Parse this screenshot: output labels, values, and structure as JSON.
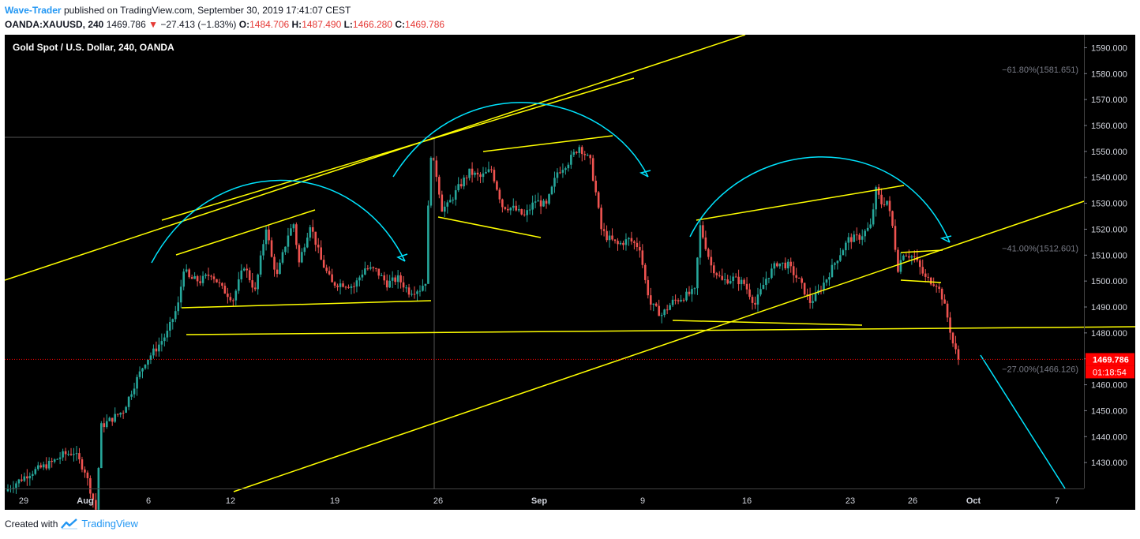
{
  "header": {
    "author": "Wave-Trader",
    "published": "published on TradingView.com, September 30, 2019 17:41:07 CEST",
    "symbol": "OANDA:XAUUSD, 240",
    "price": "1469.786",
    "arrow": "▼",
    "change": "−27.413 (−1.83%)",
    "o_label": "O:",
    "o_value": "1484.706",
    "h_label": "H:",
    "h_value": "1487.490",
    "l_label": "L:",
    "l_value": "1466.280",
    "c_label": "C:",
    "c_value": "1469.786"
  },
  "footer": {
    "created": "Created with",
    "brand": "TradingView"
  },
  "chart_data": {
    "type": "candlestick",
    "title": "Gold Spot / U.S. Dollar, 240, OANDA",
    "colors": {
      "up": "#26a69a",
      "down": "#ef5350",
      "background": "#000000",
      "trend_lines": "#ffff00",
      "arcs": "#00e5ff",
      "last_price": "#ff0000"
    },
    "ylim": [
      1420,
      1595
    ],
    "y_ticks": [
      1430,
      1440,
      1450,
      1460,
      1470,
      1480,
      1490,
      1500,
      1510,
      1520,
      1530,
      1540,
      1550,
      1560,
      1570,
      1580,
      1590
    ],
    "y_tick_labels": [
      "1430.000",
      "1440.000",
      "1450.000",
      "1460.000",
      "1470.000",
      "1480.000",
      "1490.000",
      "1500.000",
      "1510.000",
      "1520.000",
      "1530.000",
      "1540.000",
      "1550.000",
      "1560.000",
      "1570.000",
      "1580.000",
      "1590.000"
    ],
    "x_ticks": [
      "29",
      "Aug",
      "6",
      "12",
      "19",
      "26",
      "Sep",
      "9",
      "16",
      "23",
      "26",
      "Oct",
      "7"
    ],
    "bold_ticks": [
      "Aug",
      "Sep",
      "Oct"
    ],
    "last_price": "1469.786",
    "countdown": "01:18:54",
    "fib_levels": [
      {
        "label": "−61.80%(1581.651)",
        "value": 1581.651
      },
      {
        "label": "−41.00%(1512.601)",
        "value": 1512.601
      },
      {
        "label": "−27.00%(1466.126)",
        "value": 1466.126
      }
    ],
    "path_points": [
      [
        0,
        1420
      ],
      [
        8,
        1426
      ],
      [
        16,
        1430
      ],
      [
        20,
        1433
      ],
      [
        24,
        1434
      ],
      [
        28,
        1427
      ],
      [
        32,
        1412
      ],
      [
        34,
        1444
      ],
      [
        38,
        1447
      ],
      [
        42,
        1450
      ],
      [
        46,
        1460
      ],
      [
        50,
        1469
      ],
      [
        54,
        1474
      ],
      [
        58,
        1480
      ],
      [
        62,
        1491
      ],
      [
        64,
        1505
      ],
      [
        66,
        1501
      ],
      [
        70,
        1500
      ],
      [
        74,
        1503
      ],
      [
        78,
        1497
      ],
      [
        82,
        1493
      ],
      [
        86,
        1506
      ],
      [
        90,
        1496
      ],
      [
        94,
        1521
      ],
      [
        96,
        1509
      ],
      [
        98,
        1502
      ],
      [
        102,
        1518
      ],
      [
        104,
        1522
      ],
      [
        106,
        1507
      ],
      [
        110,
        1522
      ],
      [
        114,
        1508
      ],
      [
        118,
        1499
      ],
      [
        122,
        1499
      ],
      [
        126,
        1498
      ],
      [
        130,
        1505
      ],
      [
        134,
        1504
      ],
      [
        138,
        1499
      ],
      [
        142,
        1501
      ],
      [
        146,
        1496
      ],
      [
        150,
        1497
      ],
      [
        152,
        1500
      ],
      [
        153,
        1528
      ],
      [
        154,
        1549
      ],
      [
        156,
        1541
      ],
      [
        158,
        1528
      ],
      [
        160,
        1529
      ],
      [
        164,
        1536
      ],
      [
        168,
        1542
      ],
      [
        172,
        1540
      ],
      [
        176,
        1543
      ],
      [
        180,
        1529
      ],
      [
        184,
        1528
      ],
      [
        188,
        1525
      ],
      [
        192,
        1531
      ],
      [
        196,
        1529
      ],
      [
        200,
        1542
      ],
      [
        204,
        1546
      ],
      [
        208,
        1552
      ],
      [
        212,
        1546
      ],
      [
        214,
        1534
      ],
      [
        216,
        1520
      ],
      [
        218,
        1517
      ],
      [
        222,
        1514
      ],
      [
        226,
        1516
      ],
      [
        230,
        1513
      ],
      [
        232,
        1500
      ],
      [
        234,
        1491
      ],
      [
        238,
        1487
      ],
      [
        242,
        1492
      ],
      [
        246,
        1494
      ],
      [
        250,
        1496
      ],
      [
        252,
        1521
      ],
      [
        256,
        1506
      ],
      [
        260,
        1500
      ],
      [
        264,
        1501
      ],
      [
        268,
        1499
      ],
      [
        272,
        1491
      ],
      [
        276,
        1501
      ],
      [
        280,
        1507
      ],
      [
        284,
        1506
      ],
      [
        288,
        1500
      ],
      [
        292,
        1492
      ],
      [
        294,
        1494
      ],
      [
        298,
        1501
      ],
      [
        302,
        1509
      ],
      [
        306,
        1516
      ],
      [
        310,
        1517
      ],
      [
        314,
        1521
      ],
      [
        316,
        1535
      ],
      [
        318,
        1530
      ],
      [
        320,
        1531
      ],
      [
        322,
        1521
      ],
      [
        324,
        1505
      ],
      [
        326,
        1511
      ],
      [
        330,
        1509
      ],
      [
        334,
        1501
      ],
      [
        338,
        1499
      ],
      [
        340,
        1494
      ],
      [
        342,
        1486
      ],
      [
        344,
        1476
      ],
      [
        346,
        1469.786
      ]
    ],
    "x_range": [
      0,
      346
    ]
  }
}
